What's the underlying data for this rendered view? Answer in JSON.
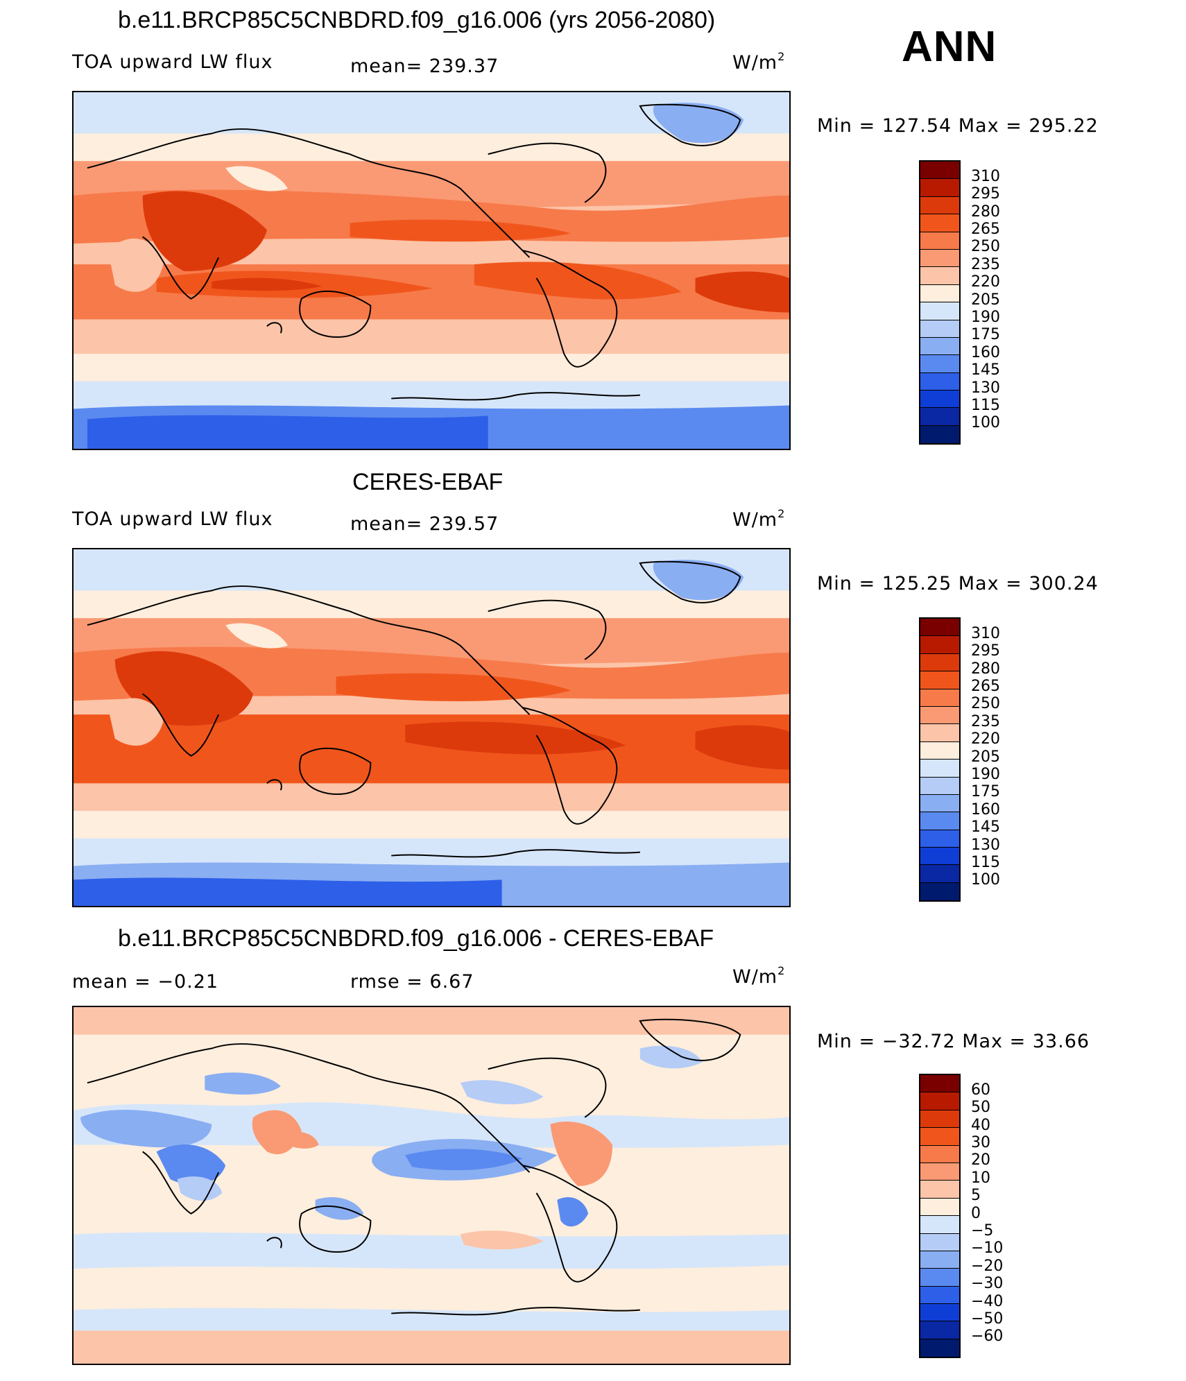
{
  "header": {
    "season": "ANN"
  },
  "panels": [
    {
      "title": "b.e11.BRCP85C5CNBDRD.f09_g16.006 (yrs 2056-2080)",
      "left_label": "TOA upward LW flux",
      "center_label": "mean=  239.37",
      "units": "W/m",
      "units_sup": "2",
      "minmax": "Min  =  127.54  Max  =  295.22",
      "colorbar_labels": [
        "310",
        "295",
        "280",
        "265",
        "250",
        "235",
        "220",
        "205",
        "190",
        "175",
        "160",
        "145",
        "130",
        "115",
        "100"
      ],
      "kind": "model"
    },
    {
      "title": "CERES-EBAF",
      "left_label": "TOA upward LW flux",
      "center_label": "mean=  239.57",
      "units": "W/m",
      "units_sup": "2",
      "minmax": "Min  =  125.25  Max  =  300.24",
      "colorbar_labels": [
        "310",
        "295",
        "280",
        "265",
        "250",
        "235",
        "220",
        "205",
        "190",
        "175",
        "160",
        "145",
        "130",
        "115",
        "100"
      ],
      "kind": "obs"
    },
    {
      "title": "b.e11.BRCP85C5CNBDRD.f09_g16.006 - CERES-EBAF",
      "left_label": "mean  =    −0.21",
      "center_label": "rmse  =     6.67",
      "units": "W/m",
      "units_sup": "2",
      "minmax": "Min  =  −32.72  Max  =    33.66",
      "colorbar_labels": [
        "60",
        "50",
        "40",
        "30",
        "20",
        "10",
        "5",
        "0",
        "−5",
        "−10",
        "−20",
        "−30",
        "−40",
        "−50",
        "−60"
      ],
      "kind": "diff"
    }
  ],
  "colorbar_colors": [
    "#7a0000",
    "#b81a00",
    "#dd3a0c",
    "#f0561c",
    "#f77a4a",
    "#fa9a74",
    "#fcc4a8",
    "#feeedd",
    "#d6e6fa",
    "#b4ccf6",
    "#8aaef2",
    "#5a8af0",
    "#2d5fe8",
    "#0f3ed6",
    "#0a27a4",
    "#001a6e"
  ]
}
